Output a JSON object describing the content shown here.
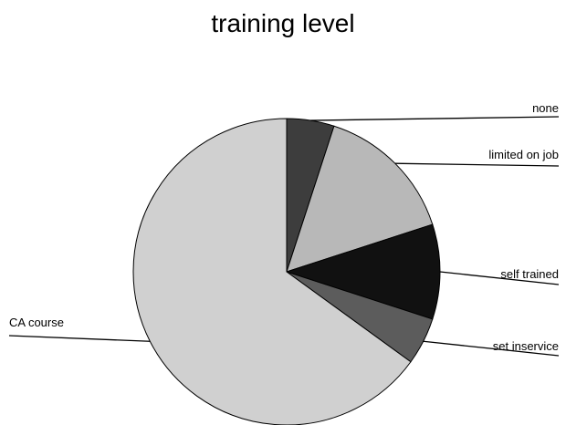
{
  "chart_data": {
    "type": "pie",
    "title": "training level",
    "slices": [
      {
        "label": "none",
        "value": 5,
        "color": "#3d3d3d"
      },
      {
        "label": "limited on job",
        "value": 15,
        "color": "#b8b8b8"
      },
      {
        "label": "self trained",
        "value": 10,
        "color": "#111111"
      },
      {
        "label": "set inservice",
        "value": 5,
        "color": "#5c5c5c"
      },
      {
        "label": "CA course",
        "value": 65,
        "color": "#d0d0d0"
      }
    ]
  }
}
